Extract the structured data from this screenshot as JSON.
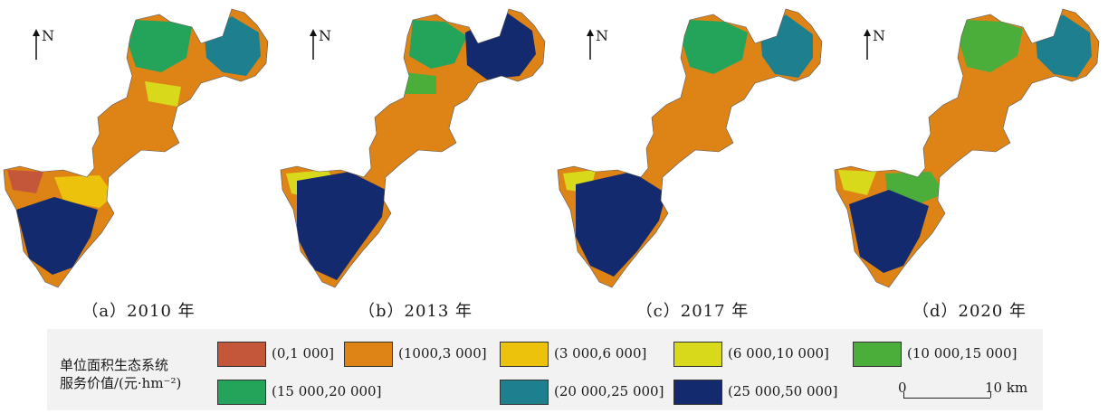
{
  "maps": [
    {
      "caption": "（a）2010 年",
      "north": "N"
    },
    {
      "caption": "（b）2013 年",
      "north": "N"
    },
    {
      "caption": "（c）2017 年",
      "north": "N"
    },
    {
      "caption": "（d）2020 年",
      "north": "N"
    }
  ],
  "legend": {
    "title_line1": "单位面积生态系统",
    "title_line2": "服务价值/(元·hm⁻²)",
    "classes": [
      {
        "label": "(0,1 000]",
        "color": "#c4573a"
      },
      {
        "label": "(1000,3 000]",
        "color": "#de8416"
      },
      {
        "label": "(3 000,6 000]",
        "color": "#ecc20c"
      },
      {
        "label": "(6 000,10 000]",
        "color": "#d9d91c"
      },
      {
        "label": "(10 000,15 000]",
        "color": "#4cae3a"
      },
      {
        "label": "(15 000,20 000]",
        "color": "#24a35a"
      },
      {
        "label": "(20 000,25 000]",
        "color": "#1e7f8e"
      },
      {
        "label": "(25 000,50 000]",
        "color": "#142a6e"
      }
    ]
  },
  "scalebar": {
    "start": "0",
    "end": "10 km"
  }
}
